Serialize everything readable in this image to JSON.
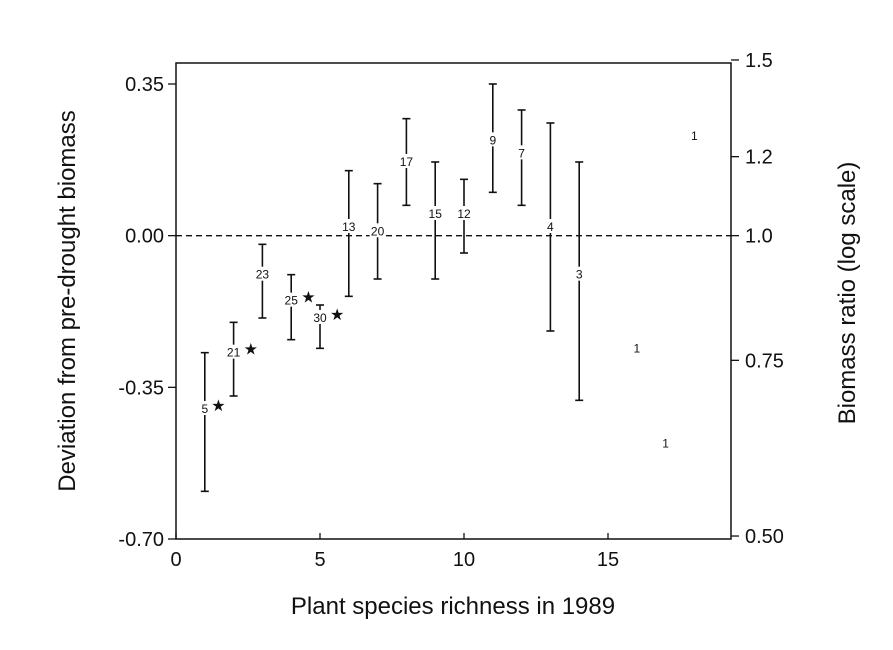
{
  "chart_data": {
    "type": "scatter",
    "xlabel": "Plant species richness in 1989",
    "ylabel": "Deviation from pre-drought biomass",
    "y2label": "Biomass ratio (log scale)",
    "xlim": [
      0,
      19
    ],
    "ylim": [
      -0.7,
      0.4
    ],
    "grid": false,
    "reference_line": {
      "y": 0.0,
      "style": "dashed"
    },
    "x_ticks": [
      {
        "value": 0,
        "label": "0"
      },
      {
        "value": 5,
        "label": "5"
      },
      {
        "value": 10,
        "label": "10"
      },
      {
        "value": 15,
        "label": "15"
      }
    ],
    "y_ticks": [
      {
        "value": 0.35,
        "label": "0.35"
      },
      {
        "value": 0.0,
        "label": "0.00"
      },
      {
        "value": -0.35,
        "label": "-0.35"
      },
      {
        "value": -0.7,
        "label": "-0.70"
      }
    ],
    "y2_ticks": [
      {
        "ratio": 1.5,
        "label": "1.5"
      },
      {
        "ratio": 1.2,
        "label": "1.2"
      },
      {
        "ratio": 1.0,
        "label": "1.0"
      },
      {
        "ratio": 0.75,
        "label": "0.75"
      },
      {
        "ratio": 0.5,
        "label": "0.50"
      }
    ],
    "points": [
      {
        "x": 1,
        "y": -0.4,
        "n": "5",
        "star": true,
        "ylow": -0.59,
        "yhigh": -0.27
      },
      {
        "x": 2,
        "y": -0.27,
        "n": "21",
        "star": true,
        "ylow": -0.37,
        "yhigh": -0.2
      },
      {
        "x": 3,
        "y": -0.09,
        "n": "23",
        "star": false,
        "ylow": -0.19,
        "yhigh": -0.02
      },
      {
        "x": 4,
        "y": -0.15,
        "n": "25",
        "star": true,
        "ylow": -0.24,
        "yhigh": -0.09
      },
      {
        "x": 5,
        "y": -0.19,
        "n": "30",
        "star": true,
        "ylow": -0.26,
        "yhigh": -0.16
      },
      {
        "x": 6,
        "y": 0.02,
        "n": "13",
        "star": false,
        "ylow": -0.14,
        "yhigh": 0.15
      },
      {
        "x": 7,
        "y": 0.01,
        "n": "20",
        "star": false,
        "ylow": -0.1,
        "yhigh": 0.12
      },
      {
        "x": 8,
        "y": 0.17,
        "n": "17",
        "star": false,
        "ylow": 0.07,
        "yhigh": 0.27
      },
      {
        "x": 9,
        "y": 0.05,
        "n": "15",
        "star": false,
        "ylow": -0.1,
        "yhigh": 0.17
      },
      {
        "x": 10,
        "y": 0.05,
        "n": "12",
        "star": false,
        "ylow": -0.04,
        "yhigh": 0.13
      },
      {
        "x": 11,
        "y": 0.22,
        "n": "9",
        "star": false,
        "ylow": 0.1,
        "yhigh": 0.35
      },
      {
        "x": 12,
        "y": 0.19,
        "n": "7",
        "star": false,
        "ylow": 0.07,
        "yhigh": 0.29
      },
      {
        "x": 13,
        "y": 0.02,
        "n": "4",
        "star": false,
        "ylow": -0.22,
        "yhigh": 0.26
      },
      {
        "x": 14,
        "y": -0.09,
        "n": "3",
        "star": false,
        "ylow": -0.38,
        "yhigh": 0.17
      },
      {
        "x": 16,
        "y": -0.26,
        "n": "1",
        "star": false
      },
      {
        "x": 17,
        "y": -0.48,
        "n": "1",
        "star": false
      },
      {
        "x": 18,
        "y": 0.23,
        "n": "1",
        "star": false
      }
    ]
  }
}
